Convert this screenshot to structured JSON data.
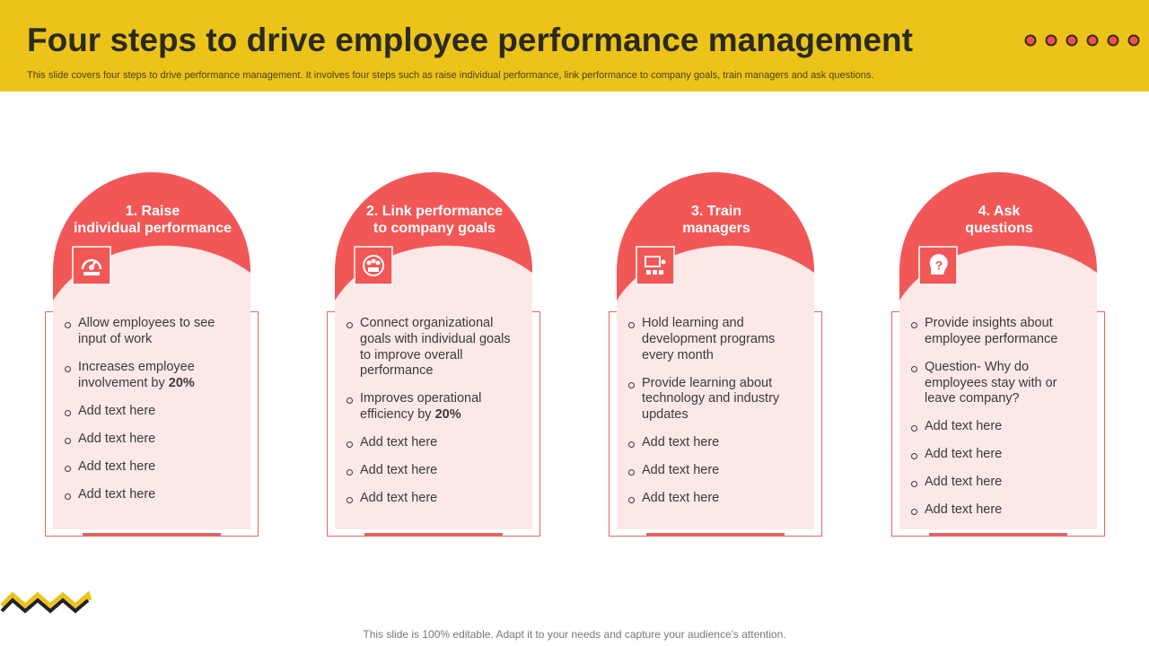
{
  "header": {
    "title": "Four steps to drive employee performance management",
    "subtitle": "This slide covers four steps to drive performance management. It involves four steps such as raise individual performance, link performance to company goals, train managers and ask questions."
  },
  "cards": [
    {
      "title": [
        "1. Raise",
        "individual performance"
      ],
      "items": [
        {
          "text": "Allow employees to see input of work"
        },
        {
          "text": "Increases employee involvement by",
          "emphasis": "20%"
        },
        {
          "text": "Add text here"
        },
        {
          "text": "Add text here"
        },
        {
          "text": "Add text here"
        },
        {
          "text": "Add text here"
        }
      ]
    },
    {
      "title": [
        "2. Link performance",
        "to company goals"
      ],
      "items": [
        {
          "text": "Connect organizational goals with individual  goals to improve overall performance"
        },
        {
          "text": "Improves operational efficiency by",
          "emphasis": "20%"
        },
        {
          "text": "Add text here"
        },
        {
          "text": "Add text here"
        },
        {
          "text": "Add text here"
        }
      ]
    },
    {
      "title": [
        "3. Train",
        "managers"
      ],
      "items": [
        {
          "text": "Hold learning and development programs every month"
        },
        {
          "text": "Provide learning about technology and industry updates"
        },
        {
          "text": "Add text here"
        },
        {
          "text": "Add text here"
        },
        {
          "text": "Add text here"
        }
      ]
    },
    {
      "title": [
        "4. Ask",
        "questions"
      ],
      "items": [
        {
          "text": "Provide insights about employee performance"
        },
        {
          "text": "Question- Why do employees stay with or leave company?"
        },
        {
          "text": "Add text here"
        },
        {
          "text": "Add text here"
        },
        {
          "text": "Add text here"
        },
        {
          "text": "Add text here"
        }
      ]
    }
  ],
  "footer": "This slide is 100% editable. Adapt it to your needs and capture your audience's attention."
}
